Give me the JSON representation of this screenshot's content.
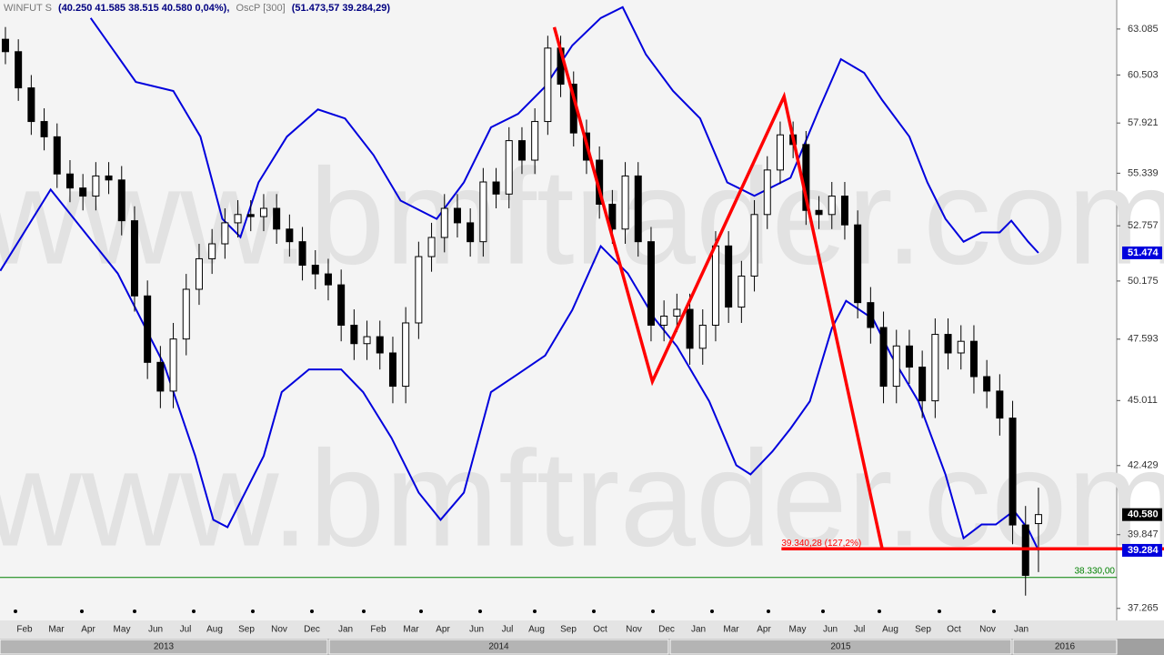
{
  "chart_data": {
    "type": "candlestick",
    "header": {
      "symbol": "WINFUT S",
      "ohlc_text": "(40.250  41.585  38.515  40.580  0,04%),",
      "study": "OscP [300]",
      "study_values": "(51.473,57 39.284,29)"
    },
    "watermark": "www.bmftrader.com",
    "log_scale": true,
    "ylim": [
      36.86,
      64.77
    ],
    "yticks": [
      63.085,
      60.503,
      57.921,
      55.339,
      52.757,
      50.175,
      47.593,
      45.011,
      42.429,
      39.847,
      37.265
    ],
    "xlim": [
      -0.42,
      86.06
    ],
    "months": [
      "Feb",
      "Mar",
      "Apr",
      "May",
      "Jun",
      "Jul",
      "Aug",
      "Sep",
      "Nov",
      "Dec",
      "Jan",
      "Feb",
      "Mar",
      "Apr",
      "Jun",
      "Jul",
      "Aug",
      "Sep",
      "Oct",
      "Nov",
      "Dec",
      "Jan",
      "Mar",
      "Apr",
      "May",
      "Jun",
      "Jul",
      "Aug",
      "Sep",
      "Oct",
      "Nov",
      "Jan"
    ],
    "years": [
      "2013",
      "2014",
      "2015",
      "2016"
    ],
    "candles": {
      "up_color": "#ffffff",
      "down_color": "#000000",
      "open": [
        62.5,
        61.8,
        59.8,
        58.0,
        57.2,
        55.3,
        54.6,
        54.2,
        55.2,
        55.0,
        53.0,
        49.5,
        46.6,
        45.4,
        47.6,
        49.8,
        51.2,
        51.9,
        52.9,
        53.3,
        53.2,
        53.6,
        52.6,
        52.0,
        50.9,
        50.5,
        50.0,
        48.2,
        47.4,
        47.7,
        47.0,
        45.6,
        48.3,
        51.3,
        52.2,
        53.6,
        52.9,
        52.0,
        54.9,
        54.3,
        57.0,
        56.0,
        58.0,
        62.0,
        60.0,
        57.4,
        56.0,
        53.8,
        52.6,
        55.2,
        52.0,
        48.2,
        48.6,
        48.9,
        47.2,
        48.2,
        51.8,
        49.0,
        50.4,
        53.3,
        55.5,
        57.3,
        56.8,
        53.5,
        53.3,
        54.2,
        52.8,
        49.2,
        48.1,
        45.6,
        47.3,
        46.4,
        45.0,
        47.8,
        47.0,
        47.5,
        46.0,
        45.4,
        44.3,
        40.2,
        40.25
      ],
      "high": [
        63.2,
        62.5,
        60.5,
        58.7,
        57.9,
        56.0,
        55.3,
        55.9,
        55.9,
        55.7,
        53.7,
        50.2,
        47.3,
        48.3,
        50.5,
        51.9,
        52.6,
        53.6,
        54.0,
        54.0,
        54.3,
        54.3,
        53.3,
        52.7,
        51.6,
        51.2,
        50.7,
        48.9,
        48.4,
        48.4,
        47.7,
        49.0,
        52.0,
        52.9,
        54.3,
        54.3,
        53.6,
        55.6,
        55.6,
        57.7,
        57.7,
        58.7,
        62.7,
        62.7,
        60.7,
        58.1,
        56.7,
        54.5,
        55.9,
        55.9,
        52.7,
        49.3,
        49.6,
        49.6,
        48.9,
        52.5,
        52.5,
        51.1,
        54.0,
        56.2,
        58.0,
        58.0,
        57.5,
        54.2,
        54.9,
        54.9,
        53.5,
        49.9,
        48.8,
        48.0,
        48.0,
        47.1,
        48.5,
        48.5,
        48.2,
        48.2,
        46.7,
        46.1,
        45.0,
        40.9,
        41.585
      ],
      "low": [
        61.1,
        59.1,
        57.3,
        56.5,
        54.6,
        53.9,
        53.5,
        53.5,
        54.3,
        52.3,
        48.8,
        45.9,
        44.7,
        44.7,
        46.9,
        49.1,
        50.5,
        51.2,
        52.2,
        52.5,
        52.5,
        51.9,
        51.3,
        50.2,
        49.8,
        49.3,
        47.5,
        46.7,
        46.7,
        46.3,
        44.9,
        44.9,
        47.6,
        50.6,
        51.5,
        52.2,
        51.3,
        51.3,
        53.6,
        53.6,
        55.3,
        55.3,
        57.3,
        59.3,
        56.7,
        55.3,
        53.1,
        51.9,
        51.9,
        51.3,
        47.5,
        47.5,
        47.9,
        46.5,
        46.5,
        47.5,
        48.3,
        48.3,
        49.7,
        52.6,
        54.8,
        56.1,
        52.8,
        52.6,
        52.6,
        52.1,
        48.5,
        47.4,
        44.9,
        44.9,
        45.7,
        44.3,
        44.3,
        46.3,
        46.3,
        45.3,
        44.7,
        43.6,
        39.5,
        37.7,
        38.515
      ],
      "close": [
        61.8,
        59.8,
        58.0,
        57.2,
        55.3,
        54.6,
        54.2,
        55.2,
        55.0,
        53.0,
        49.5,
        46.6,
        45.4,
        47.6,
        49.8,
        51.2,
        51.9,
        52.9,
        53.3,
        53.2,
        53.6,
        52.6,
        52.0,
        50.9,
        50.5,
        50.0,
        48.2,
        47.4,
        47.7,
        47.0,
        45.6,
        48.3,
        51.3,
        52.2,
        53.6,
        52.9,
        52.0,
        54.9,
        54.3,
        57.0,
        56.0,
        58.0,
        62.0,
        60.0,
        57.4,
        56.0,
        53.8,
        52.6,
        55.2,
        52.0,
        48.2,
        48.6,
        48.9,
        47.2,
        48.2,
        51.8,
        49.0,
        50.4,
        53.3,
        55.5,
        57.3,
        56.8,
        53.5,
        53.3,
        54.2,
        52.8,
        49.2,
        48.1,
        45.6,
        47.3,
        46.4,
        45.0,
        47.8,
        47.0,
        47.5,
        46.0,
        45.4,
        44.3,
        40.2,
        38.4,
        40.58
      ]
    },
    "bands": [
      {
        "color": "#0000dd",
        "x": [
          6.6,
          10.1,
          13.0,
          15.1,
          16.8,
          18.2,
          19.6,
          21.8,
          24.2,
          26.3,
          28.5,
          30.6,
          33.4,
          35.5,
          37.6,
          39.7,
          41.8,
          43.9,
          46.1,
          47.8,
          49.6,
          51.7,
          53.8,
          55.9,
          58.0,
          60.8,
          63.0,
          64.7,
          66.5,
          67.9,
          70.0,
          71.4,
          72.8,
          74.2,
          75.6,
          77.0,
          77.9,
          79.2,
          80
        ],
        "values": [
          63.72,
          60.12,
          59.63,
          57.21,
          53.09,
          52.22,
          54.88,
          57.21,
          58.64,
          58.16,
          56.26,
          53.98,
          53.09,
          54.88,
          57.69,
          58.4,
          59.87,
          62.15,
          63.72,
          64.35,
          61.64,
          59.63,
          58.16,
          54.88,
          54.21,
          55.11,
          58.64,
          61.38,
          60.62,
          59.14,
          57.21,
          54.88,
          53.09,
          52.0,
          52.44,
          52.44,
          53.0,
          52.0,
          51.474
        ]
      },
      {
        "color": "#0000dd",
        "x": [
          -0.4,
          3.5,
          8.7,
          12.3,
          14.7,
          16.1,
          17.2,
          20.0,
          21.4,
          23.5,
          26.0,
          27.7,
          29.9,
          32.0,
          33.7,
          35.5,
          37.6,
          39.7,
          41.8,
          43.9,
          46.1,
          48.2,
          50.3,
          52.0,
          54.5,
          56.6,
          57.7,
          59.4,
          60.8,
          62.3,
          64.0,
          65.1,
          67.2,
          68.6,
          70.7,
          72.8,
          74.2,
          75.6,
          76.7,
          78.1,
          79.2,
          80
        ],
        "values": [
          50.64,
          54.52,
          50.52,
          46.49,
          42.8,
          40.39,
          40.12,
          42.8,
          45.36,
          46.3,
          46.3,
          45.36,
          43.51,
          41.4,
          40.39,
          41.4,
          45.36,
          46.11,
          46.89,
          48.87,
          51.79,
          50.52,
          48.47,
          47.28,
          44.98,
          42.44,
          42.09,
          42.98,
          43.88,
          44.98,
          48.07,
          49.28,
          48.47,
          46.89,
          44.98,
          42.09,
          39.72,
          40.22,
          40.22,
          40.72,
          40.05,
          39.284
        ]
      }
    ],
    "zigzag": {
      "color": "#ff0000",
      "x": [
        42.5,
        50.1,
        60.3,
        67.9
      ],
      "values": [
        63.19,
        45.8,
        59.33,
        39.34
      ]
    },
    "target": {
      "value": 39.34028,
      "label": "39.340,28 (127,2%)",
      "x_start": 60.1,
      "color": "#ff0000"
    },
    "stop_line": {
      "value": 38.33,
      "label": "38.330,00",
      "color": "#008000"
    },
    "price_tags": [
      {
        "value": 51.474,
        "label": "51.474",
        "color": "#0000dd"
      },
      {
        "value": 40.58,
        "label": "40.580",
        "color": "#000000"
      },
      {
        "value": 39.284,
        "label": "39.284",
        "color": "#0000dd"
      }
    ]
  }
}
